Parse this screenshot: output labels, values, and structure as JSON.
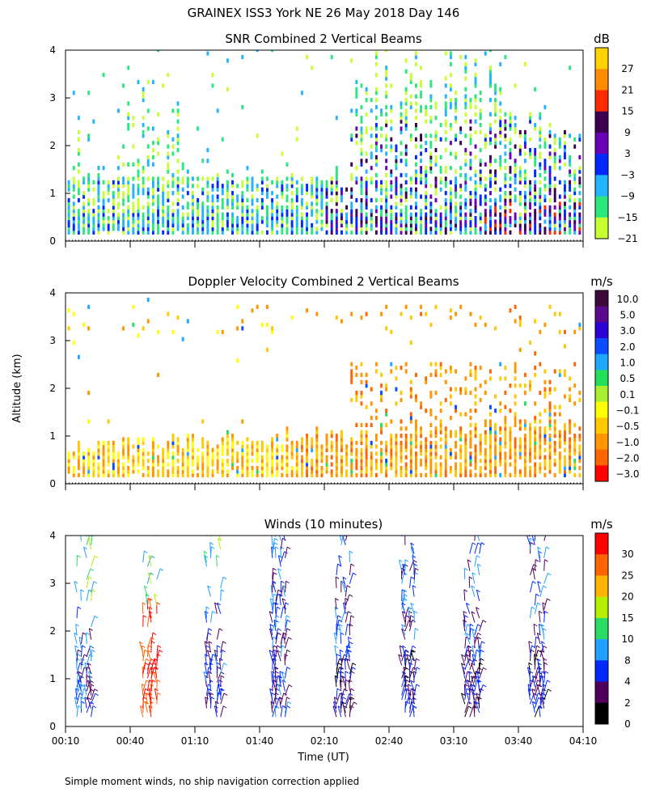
{
  "figure": {
    "title": "GRAINEX ISS3 York NE  26 May 2018 Day 146",
    "ylabel": "Altitude (km)",
    "xlabel": "Time (UT)",
    "footnote": "Simple moment winds, no ship navigation correction applied",
    "x_ticks": [
      "00:10",
      "00:40",
      "01:10",
      "01:40",
      "02:10",
      "02:40",
      "03:10",
      "03:40",
      "04:10"
    ]
  },
  "chart_data": [
    {
      "type": "heatmap",
      "title": "SNR Combined 2 Vertical Beams",
      "ylabel": "Altitude (km)",
      "y_ticks": [
        "0",
        "1",
        "2",
        "3",
        "4"
      ],
      "ylim": [
        0,
        4
      ],
      "xlim": [
        "00:10",
        "04:10"
      ],
      "colorbar": {
        "unit": "dB",
        "labels": [
          "27",
          "21",
          "15",
          "9",
          "3",
          "−3",
          "−9",
          "−15",
          "−21"
        ],
        "colors": [
          "#ffd200",
          "#ff8c00",
          "#ff2a00",
          "#3c0050",
          "#6a00b8",
          "#0028ff",
          "#21b4ff",
          "#2be87e",
          "#c8ff32"
        ]
      }
    },
    {
      "type": "heatmap",
      "title": "Doppler Velocity Combined 2 Vertical Beams",
      "ylabel": "Altitude (km)",
      "y_ticks": [
        "0",
        "1",
        "2",
        "3",
        "4"
      ],
      "ylim": [
        0,
        4
      ],
      "xlim": [
        "00:10",
        "04:10"
      ],
      "colorbar": {
        "unit": "m/s",
        "labels": [
          "10.0",
          "5.0",
          "3.0",
          "2.0",
          "1.0",
          "0.5",
          "0.1",
          "−0.1",
          "−0.5",
          "−1.0",
          "−2.0",
          "−3.0"
        ],
        "colors": [
          "#3c0a3a",
          "#5a0a8c",
          "#2c00d6",
          "#0a4cff",
          "#1fa8ff",
          "#23e05a",
          "#aaf030",
          "#ffff00",
          "#ffc800",
          "#ff9600",
          "#ff6400",
          "#ff0000"
        ]
      }
    },
    {
      "type": "scatter",
      "title": "Winds (10 minutes)",
      "ylabel": "Altitude (km)",
      "y_ticks": [
        "0",
        "1",
        "2",
        "3",
        "4"
      ],
      "ylim": [
        0,
        4
      ],
      "xlim": [
        "00:10",
        "04:10"
      ],
      "colorbar": {
        "unit": "m/s",
        "labels": [
          "30",
          "25",
          "20",
          "15",
          "10",
          "8",
          "4",
          "2",
          "0"
        ],
        "colors": [
          "#ff0000",
          "#ff6400",
          "#ffb400",
          "#b4f000",
          "#28dc64",
          "#1ea0ff",
          "#0028ff",
          "#50005a",
          "#000000"
        ]
      }
    }
  ]
}
